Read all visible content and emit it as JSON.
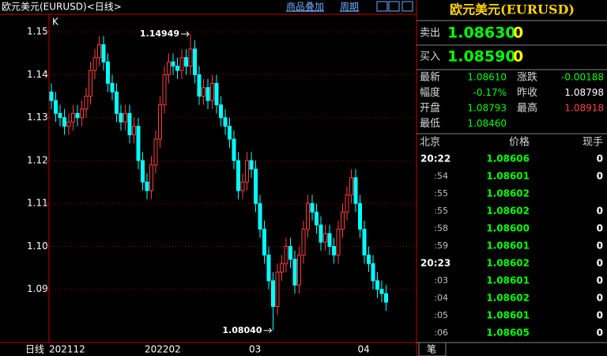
{
  "chart_data": {
    "type": "candlestick",
    "title": "欧元美元(EURUSD)<日线>",
    "period_label": "日线",
    "axis_corner_label": "K",
    "categories": [
      "202112",
      null,
      null,
      null,
      null,
      null,
      null,
      null,
      null,
      null,
      null,
      null,
      null,
      null,
      null,
      null,
      null,
      null,
      null,
      null,
      null,
      null,
      "202202",
      null,
      null,
      null,
      null,
      null,
      null,
      null,
      null,
      null,
      null,
      null,
      null,
      null,
      null,
      null,
      null,
      null,
      null,
      null,
      null,
      null,
      null,
      null,
      "03",
      null,
      null,
      null,
      null,
      null,
      null,
      null,
      null,
      null,
      null,
      null,
      null,
      null,
      null,
      null,
      null,
      null,
      null,
      null,
      null,
      null,
      null,
      null,
      null,
      "04",
      null,
      null,
      null,
      null,
      null,
      null
    ],
    "open": [
      1.136,
      1.134,
      1.131,
      1.13,
      1.128,
      1.129,
      1.131,
      1.13,
      1.132,
      1.135,
      1.141,
      1.144,
      1.147,
      1.143,
      1.138,
      1.136,
      1.131,
      1.129,
      1.131,
      1.126,
      1.128,
      1.12,
      1.115,
      1.113,
      1.119,
      1.125,
      1.133,
      1.14,
      1.143,
      1.142,
      1.141,
      1.144,
      1.142,
      1.146,
      1.14,
      1.135,
      1.137,
      1.134,
      1.138,
      1.133,
      1.13,
      1.128,
      1.125,
      1.12,
      1.113,
      1.115,
      1.12,
      1.118,
      1.11,
      1.104,
      1.098,
      1.092,
      1.086,
      1.094,
      1.096,
      1.1,
      1.097,
      1.091,
      1.098,
      1.104,
      1.11,
      1.108,
      1.105,
      1.101,
      1.103,
      1.1,
      1.098,
      1.104,
      1.108,
      1.112,
      1.116,
      1.11,
      1.104,
      1.098,
      1.096,
      1.092,
      1.09,
      1.089
    ],
    "high": [
      1.138,
      1.136,
      1.133,
      1.132,
      1.131,
      1.133,
      1.133,
      1.134,
      1.137,
      1.143,
      1.146,
      1.149,
      1.149,
      1.145,
      1.14,
      1.138,
      1.133,
      1.133,
      1.133,
      1.13,
      1.13,
      1.122,
      1.117,
      1.121,
      1.127,
      1.135,
      1.142,
      1.145,
      1.145,
      1.144,
      1.146,
      1.146,
      1.14949,
      1.148,
      1.142,
      1.139,
      1.139,
      1.14,
      1.14,
      1.135,
      1.132,
      1.13,
      1.127,
      1.122,
      1.117,
      1.122,
      1.122,
      1.12,
      1.112,
      1.106,
      1.1,
      1.094,
      1.096,
      1.098,
      1.102,
      1.102,
      1.099,
      1.1,
      1.106,
      1.112,
      1.112,
      1.11,
      1.107,
      1.105,
      1.105,
      1.102,
      1.106,
      1.11,
      1.114,
      1.118,
      1.118,
      1.112,
      1.106,
      1.1,
      1.098,
      1.094,
      1.092,
      1.091
    ],
    "low": [
      1.132,
      1.129,
      1.128,
      1.126,
      1.126,
      1.127,
      1.128,
      1.128,
      1.13,
      1.133,
      1.139,
      1.142,
      1.141,
      1.136,
      1.134,
      1.129,
      1.127,
      1.127,
      1.124,
      1.124,
      1.118,
      1.113,
      1.111,
      1.111,
      1.117,
      1.123,
      1.131,
      1.138,
      1.14,
      1.139,
      1.139,
      1.14,
      1.14,
      1.138,
      1.133,
      1.133,
      1.132,
      1.132,
      1.131,
      1.128,
      1.126,
      1.123,
      1.118,
      1.111,
      1.111,
      1.113,
      1.116,
      1.108,
      1.102,
      1.096,
      1.09,
      1.0804,
      1.084,
      1.092,
      1.094,
      1.095,
      1.089,
      1.089,
      1.096,
      1.102,
      1.106,
      1.103,
      1.099,
      1.099,
      1.098,
      1.096,
      1.096,
      1.102,
      1.106,
      1.11,
      1.108,
      1.102,
      1.096,
      1.094,
      1.09,
      1.088,
      1.087,
      1.085
    ],
    "close": [
      1.134,
      1.131,
      1.13,
      1.128,
      1.129,
      1.131,
      1.13,
      1.132,
      1.135,
      1.141,
      1.144,
      1.147,
      1.143,
      1.138,
      1.136,
      1.131,
      1.129,
      1.131,
      1.126,
      1.128,
      1.12,
      1.115,
      1.113,
      1.119,
      1.125,
      1.133,
      1.14,
      1.143,
      1.142,
      1.141,
      1.144,
      1.142,
      1.146,
      1.14,
      1.135,
      1.137,
      1.134,
      1.138,
      1.133,
      1.13,
      1.128,
      1.125,
      1.12,
      1.113,
      1.115,
      1.12,
      1.118,
      1.11,
      1.104,
      1.098,
      1.092,
      1.086,
      1.094,
      1.096,
      1.1,
      1.097,
      1.091,
      1.098,
      1.104,
      1.11,
      1.108,
      1.105,
      1.101,
      1.103,
      1.1,
      1.098,
      1.104,
      1.108,
      1.112,
      1.116,
      1.11,
      1.104,
      1.098,
      1.096,
      1.092,
      1.09,
      1.089,
      1.087
    ],
    "up_color": "#ff3c3c",
    "down_color": "#00ffff",
    "ylim": [
      1.0776,
      1.1541
    ],
    "yticks": [
      1.15,
      1.14,
      1.13,
      1.12,
      1.11,
      {
        "value": 1.1,
        "label": "1.10"
      },
      1.09
    ],
    "grid": true,
    "annotations": [
      {
        "value": 1.14949,
        "label": "1.14949",
        "index": 32
      },
      {
        "value": 1.0804,
        "label": "1.08040",
        "index": 51
      }
    ]
  },
  "toolbar": {
    "overlay": "商品叠加",
    "period": "周期"
  },
  "quote": {
    "title": "欧元美元(EURUSD)",
    "sell": {
      "label": "卖出",
      "price": "1.08630",
      "size": "0"
    },
    "buy": {
      "label": "买入",
      "price": "1.08590",
      "size": "0"
    },
    "stats": [
      [
        "最新",
        "1.08610",
        "涨跌",
        "-0.00188"
      ],
      [
        "幅度",
        "-0.17%",
        "昨收",
        "1.08798"
      ],
      [
        "开盘",
        "1.08793",
        "最高",
        "1.08918"
      ],
      [
        "最低",
        "1.08460"
      ]
    ],
    "ticks_header": [
      "北京",
      "价格",
      "现手"
    ],
    "ticks": [
      [
        "20:22",
        "1.08606",
        "0"
      ],
      [
        ":54",
        "1.08601",
        "0"
      ],
      [
        ":55",
        "1.08602"
      ],
      [
        ":55",
        "1.08602",
        "0"
      ],
      [
        ":58",
        "1.08600",
        "0"
      ],
      [
        ":59",
        "1.08601",
        "0"
      ],
      [
        "20:23",
        "1.08602",
        "0"
      ],
      [
        ":03",
        "1.08601",
        "0"
      ],
      [
        ":04",
        "1.08602",
        "0"
      ],
      [
        ":05",
        "1.08601",
        "0"
      ],
      [
        ":06",
        "1.08605",
        "0"
      ]
    ],
    "tab": "笔"
  }
}
